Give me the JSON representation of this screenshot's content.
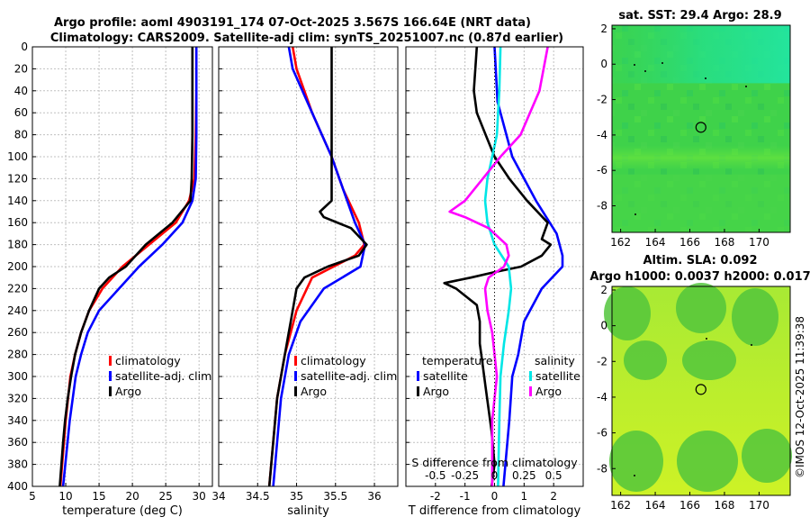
{
  "title_line1": "Argo profile: aoml 4903191_174 07-Oct-2025 3.567S 166.64E (NRT data)",
  "title_line2": "Climatology: CARS2009. Satellite-adj clim: synTS_20251007.nc (0.87d earlier)",
  "stamp": "©IMOS 12-Oct-2025 11:39:38",
  "colors": {
    "climatology": "#ff0000",
    "satellite": "#0000ff",
    "argo": "#000000",
    "sal_sat": "#00e6e6",
    "sal_argo": "#ff00ff",
    "grid": "#c0c0c0"
  },
  "chart_data": [
    {
      "name": "temperature-panel",
      "type": "line",
      "xlabel": "temperature (deg C)",
      "xlim": [
        5,
        32
      ],
      "xticks": [
        5,
        10,
        15,
        20,
        25,
        30
      ],
      "xtick_labels": [
        "5",
        "10",
        "15",
        "20",
        "25",
        "30"
      ],
      "ylim": [
        0,
        400
      ],
      "yticks": [
        0,
        20,
        40,
        60,
        80,
        100,
        120,
        140,
        160,
        180,
        200,
        220,
        240,
        260,
        280,
        300,
        320,
        340,
        360,
        380,
        400
      ],
      "ytick_labels": [
        "0",
        "20",
        "40",
        "60",
        "80",
        "100",
        "120",
        "140",
        "160",
        "180",
        "200",
        "220",
        "240",
        "260",
        "280",
        "300",
        "320",
        "340",
        "360",
        "380",
        "400"
      ],
      "legend": [
        "climatology",
        "satellite-adj. clim",
        "Argo"
      ],
      "series": [
        {
          "name": "climatology",
          "color": "#ff0000",
          "depth": [
            0,
            40,
            80,
            120,
            140,
            160,
            180,
            200,
            220,
            240,
            260,
            280,
            300,
            340,
            400
          ],
          "values": [
            29.6,
            29.6,
            29.5,
            29.3,
            28.5,
            26.5,
            22.5,
            18.5,
            15.5,
            13.5,
            12.3,
            11.4,
            10.7,
            10.0,
            9.2
          ]
        },
        {
          "name": "satellite-adj. clim",
          "color": "#0000ff",
          "depth": [
            0,
            40,
            80,
            120,
            140,
            160,
            180,
            200,
            220,
            240,
            260,
            280,
            300,
            340,
            400
          ],
          "values": [
            29.6,
            29.6,
            29.6,
            29.5,
            29.0,
            27.5,
            24.5,
            21.0,
            18.0,
            15.0,
            13.3,
            12.3,
            11.5,
            10.6,
            9.6
          ]
        },
        {
          "name": "Argo",
          "color": "#000000",
          "depth": [
            0,
            40,
            80,
            120,
            140,
            160,
            180,
            200,
            210,
            220,
            240,
            260,
            280,
            300,
            320,
            340,
            360,
            400
          ],
          "values": [
            29.0,
            29.0,
            29.0,
            28.9,
            28.7,
            26.0,
            22.0,
            19.0,
            16.5,
            15.0,
            13.5,
            12.3,
            11.4,
            10.8,
            10.3,
            9.9,
            9.6,
            9.1
          ]
        }
      ]
    },
    {
      "name": "salinity-panel",
      "type": "line",
      "xlabel": "salinity",
      "xlim": [
        34,
        36.3
      ],
      "xticks": [
        34,
        34.5,
        35,
        35.5,
        36
      ],
      "xtick_labels": [
        "34",
        "34.5",
        "35",
        "35.5",
        "36"
      ],
      "ylim": [
        0,
        400
      ],
      "legend": [
        "climatology",
        "satellite-adj. clim",
        "Argo"
      ],
      "series": [
        {
          "name": "climatology",
          "color": "#ff0000",
          "depth": [
            0,
            20,
            60,
            100,
            130,
            160,
            180,
            190,
            210,
            240,
            280,
            320,
            400
          ],
          "values": [
            34.95,
            35.0,
            35.2,
            35.45,
            35.6,
            35.8,
            35.87,
            35.75,
            35.2,
            35.0,
            34.85,
            34.75,
            34.65
          ]
        },
        {
          "name": "satellite-adj. clim",
          "color": "#0000ff",
          "depth": [
            0,
            20,
            60,
            100,
            130,
            160,
            180,
            200,
            220,
            250,
            280,
            320,
            400
          ],
          "values": [
            34.9,
            34.95,
            35.2,
            35.45,
            35.6,
            35.75,
            35.88,
            35.82,
            35.35,
            35.05,
            34.9,
            34.8,
            34.7
          ]
        },
        {
          "name": "Argo",
          "color": "#000000",
          "depth": [
            0,
            100,
            140,
            150,
            155,
            165,
            180,
            190,
            200,
            210,
            220,
            240,
            280,
            320,
            400
          ],
          "values": [
            35.45,
            35.45,
            35.45,
            35.3,
            35.35,
            35.7,
            35.9,
            35.8,
            35.4,
            35.1,
            35.0,
            34.95,
            34.85,
            34.75,
            34.65
          ]
        }
      ]
    },
    {
      "name": "difference-panel",
      "type": "line",
      "xlabel": "T difference from climatology",
      "xlabel_top": "S difference from climatology",
      "xlim": [
        -3,
        3
      ],
      "xticks": [
        -2,
        -1,
        0,
        1,
        2
      ],
      "xtick_labels": [
        "-2",
        "-1",
        "0",
        "1",
        "2"
      ],
      "sxticks": [
        -0.5,
        -0.25,
        0,
        0.25,
        0.5
      ],
      "sxtick_labels": [
        "-0.5",
        "-0.25",
        "0",
        "0.25",
        "0.5"
      ],
      "ylim": [
        0,
        400
      ],
      "legend_headers": [
        "temperature",
        "salinity"
      ],
      "legend": [
        "satellite",
        "Argo",
        "satellite",
        "Argo"
      ],
      "series": [
        {
          "name": "T satellite",
          "color": "#0000ff",
          "depth": [
            0,
            50,
            100,
            140,
            170,
            190,
            200,
            220,
            250,
            280,
            300,
            340,
            400
          ],
          "values": [
            0.0,
            0.1,
            0.6,
            1.4,
            2.1,
            2.3,
            2.3,
            1.6,
            1.0,
            0.8,
            0.6,
            0.5,
            0.3
          ]
        },
        {
          "name": "T Argo",
          "color": "#000000",
          "depth": [
            0,
            40,
            60,
            80,
            100,
            120,
            140,
            160,
            175,
            180,
            190,
            200,
            205,
            210,
            215,
            220,
            235,
            250,
            270,
            290,
            310,
            330,
            350,
            380,
            400
          ],
          "values": [
            -0.6,
            -0.7,
            -0.6,
            -0.3,
            0.0,
            0.5,
            1.1,
            1.8,
            1.6,
            1.9,
            1.6,
            0.9,
            0.0,
            -0.8,
            -1.7,
            -1.3,
            -0.6,
            -0.5,
            -0.5,
            -0.4,
            -0.3,
            -0.2,
            -0.1,
            0.0,
            -0.1
          ]
        },
        {
          "name": "S satellite",
          "color": "#00e6e6",
          "depth": [
            0,
            40,
            80,
            100,
            120,
            140,
            160,
            180,
            200,
            220,
            240,
            270,
            300,
            340,
            400
          ],
          "values": [
            0.05,
            0.04,
            0.02,
            -0.02,
            -0.06,
            -0.08,
            -0.06,
            0.0,
            0.12,
            0.14,
            0.12,
            0.08,
            0.05,
            0.04,
            0.03
          ]
        },
        {
          "name": "S Argo",
          "color": "#ff00ff",
          "depth": [
            0,
            40,
            80,
            100,
            120,
            140,
            150,
            155,
            165,
            180,
            190,
            200,
            210,
            220,
            240,
            260,
            280,
            300,
            320,
            340,
            400
          ],
          "values": [
            0.45,
            0.38,
            0.22,
            0.05,
            -0.1,
            -0.25,
            -0.38,
            -0.25,
            -0.05,
            0.1,
            0.12,
            0.08,
            -0.05,
            -0.08,
            -0.06,
            -0.02,
            0.0,
            0.02,
            0.0,
            -0.02,
            -0.02
          ]
        }
      ]
    },
    {
      "name": "sst-map",
      "type": "heatmap",
      "title": "sat. SST: 29.4 Argo: 28.9",
      "xlim": [
        161.5,
        171.8
      ],
      "ylim": [
        -9.5,
        2.2
      ],
      "xticks": [
        162,
        164,
        166,
        168,
        170
      ],
      "xtick_labels": [
        "162",
        "164",
        "166",
        "168",
        "170"
      ],
      "yticks": [
        2,
        0,
        -2,
        -4,
        -6,
        -8
      ],
      "ytick_labels": [
        "2",
        "0",
        "-2",
        "-4",
        "-6",
        "-8"
      ],
      "marker": [
        166.64,
        -3.567
      ],
      "colors": [
        "#3fd24a",
        "#2ee27a",
        "#33d35a",
        "#55dd44"
      ]
    },
    {
      "name": "sla-map",
      "type": "heatmap",
      "title": "Altim. SLA: 0.092",
      "title2": "Argo h1000: 0.0037 h2000: 0.017",
      "xlim": [
        161.5,
        171.8
      ],
      "ylim": [
        -9.5,
        2.2
      ],
      "xticks": [
        162,
        164,
        166,
        168,
        170
      ],
      "xtick_labels": [
        "162",
        "164",
        "166",
        "168",
        "170"
      ],
      "yticks": [
        2,
        0,
        -2,
        -4,
        -6,
        -8
      ],
      "ytick_labels": [
        "2",
        "0",
        "-2",
        "-4",
        "-6",
        "-8"
      ],
      "marker": [
        166.64,
        -3.567
      ],
      "colors": [
        "#8fe63a",
        "#c8f028",
        "#4ac83c"
      ]
    }
  ]
}
